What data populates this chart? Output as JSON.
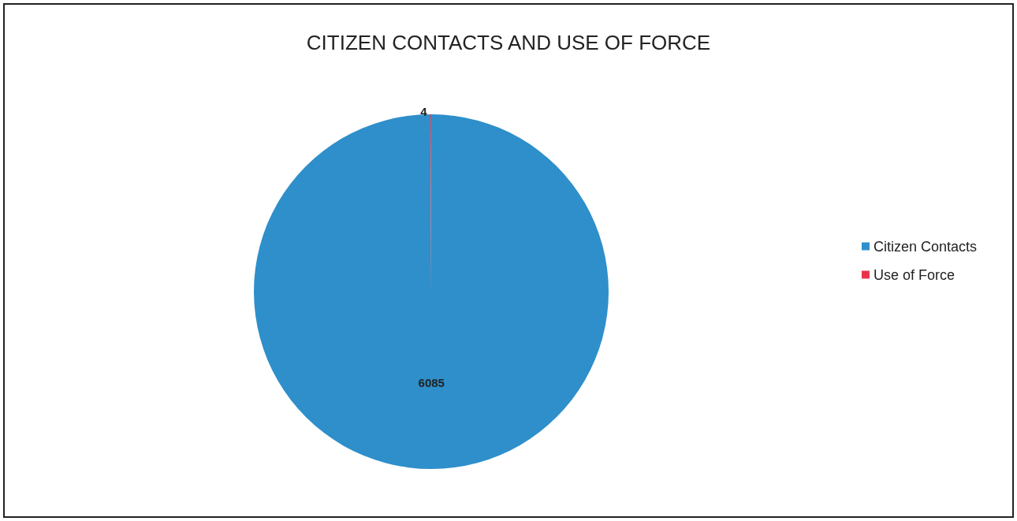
{
  "chart_data": {
    "type": "pie",
    "title": "CITIZEN CONTACTS AND USE OF FORCE",
    "categories": [
      "Citizen Contacts",
      "Use of Force"
    ],
    "values": [
      6085,
      4
    ],
    "colors": [
      "#2e8fcb",
      "#e8334a"
    ],
    "data_labels": true,
    "legend": "right"
  }
}
